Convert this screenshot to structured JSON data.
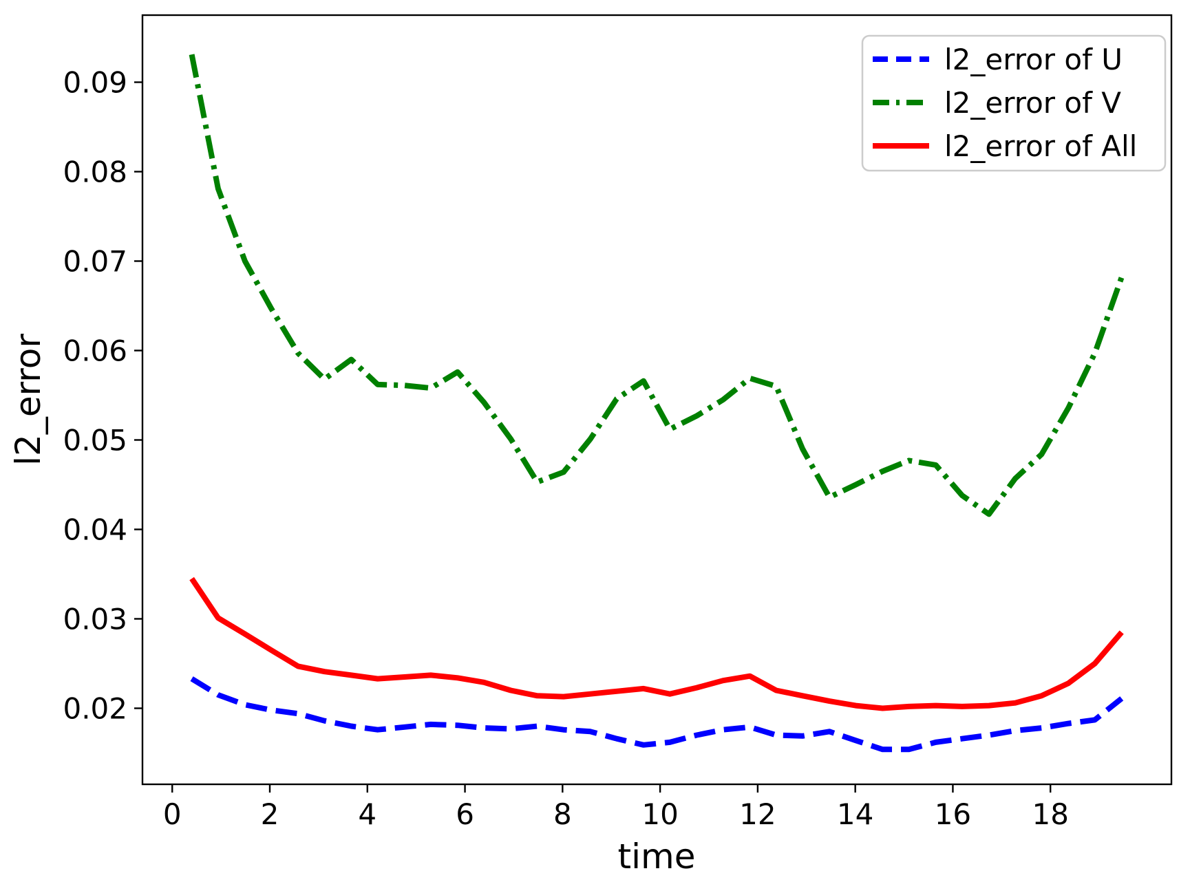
{
  "figure": {
    "background": "#ffffff",
    "spine_color": "#000000",
    "legend_border_color": "#cccccc",
    "legend_background": "#ffffff"
  },
  "chart_data": {
    "type": "line",
    "title": "",
    "xlabel": "time",
    "ylabel": "l2_error",
    "grid": false,
    "legend_position": "upper right",
    "xlim": [
      -0.61,
      20.48
    ],
    "ylim": [
      0.0115,
      0.0975
    ],
    "x_ticks": [
      0,
      2,
      4,
      6,
      8,
      10,
      12,
      14,
      16,
      18
    ],
    "x_tick_labels": [
      "0",
      "2",
      "4",
      "6",
      "8",
      "10",
      "12",
      "14",
      "16",
      "18"
    ],
    "y_ticks": [
      0.02,
      0.03,
      0.04,
      0.05,
      0.06,
      0.07,
      0.08,
      0.09
    ],
    "y_tick_labels": [
      "0.02",
      "0.03",
      "0.04",
      "0.05",
      "0.06",
      "0.07",
      "0.08",
      "0.09"
    ],
    "x": [
      0.4,
      0.94,
      1.49,
      2.03,
      2.58,
      3.12,
      3.67,
      4.21,
      4.76,
      5.3,
      5.85,
      6.39,
      6.94,
      7.48,
      8.02,
      8.57,
      9.11,
      9.66,
      10.2,
      10.75,
      11.29,
      11.84,
      12.38,
      12.92,
      13.47,
      14.01,
      14.56,
      15.1,
      15.65,
      16.19,
      16.74,
      17.28,
      17.82,
      18.37,
      18.91,
      19.46
    ],
    "series": [
      {
        "name": "l2_error of U",
        "color": "#0000ff",
        "style": "dashed",
        "values": [
          0.0233,
          0.0215,
          0.0204,
          0.0198,
          0.0194,
          0.0186,
          0.018,
          0.0176,
          0.0179,
          0.0182,
          0.0181,
          0.0178,
          0.0177,
          0.018,
          0.0176,
          0.0174,
          0.0166,
          0.0159,
          0.0162,
          0.017,
          0.0176,
          0.0179,
          0.017,
          0.0169,
          0.0174,
          0.0164,
          0.0154,
          0.0154,
          0.0162,
          0.0166,
          0.017,
          0.0175,
          0.0178,
          0.0183,
          0.0187,
          0.0211
        ]
      },
      {
        "name": "l2_error of V",
        "color": "#008000",
        "style": "dashdot",
        "values": [
          0.0931,
          0.0781,
          0.07,
          0.0647,
          0.0597,
          0.0568,
          0.059,
          0.0562,
          0.0561,
          0.0558,
          0.0576,
          0.0542,
          0.0501,
          0.0453,
          0.0464,
          0.0501,
          0.0546,
          0.0566,
          0.0512,
          0.0527,
          0.0545,
          0.0569,
          0.056,
          0.049,
          0.0436,
          0.045,
          0.0465,
          0.0477,
          0.0472,
          0.0438,
          0.0417,
          0.0457,
          0.0484,
          0.0536,
          0.0597,
          0.0682
        ]
      },
      {
        "name": "l2_error of All",
        "color": "#ff0000",
        "style": "solid",
        "values": [
          0.0345,
          0.0301,
          0.0283,
          0.0265,
          0.0247,
          0.0241,
          0.0237,
          0.0233,
          0.0235,
          0.0237,
          0.0234,
          0.0229,
          0.022,
          0.0214,
          0.0213,
          0.0216,
          0.0219,
          0.0222,
          0.0216,
          0.0223,
          0.0231,
          0.0236,
          0.022,
          0.0214,
          0.0208,
          0.0203,
          0.02,
          0.0202,
          0.0203,
          0.0202,
          0.0203,
          0.0206,
          0.0214,
          0.0228,
          0.025,
          0.0285
        ]
      }
    ]
  }
}
